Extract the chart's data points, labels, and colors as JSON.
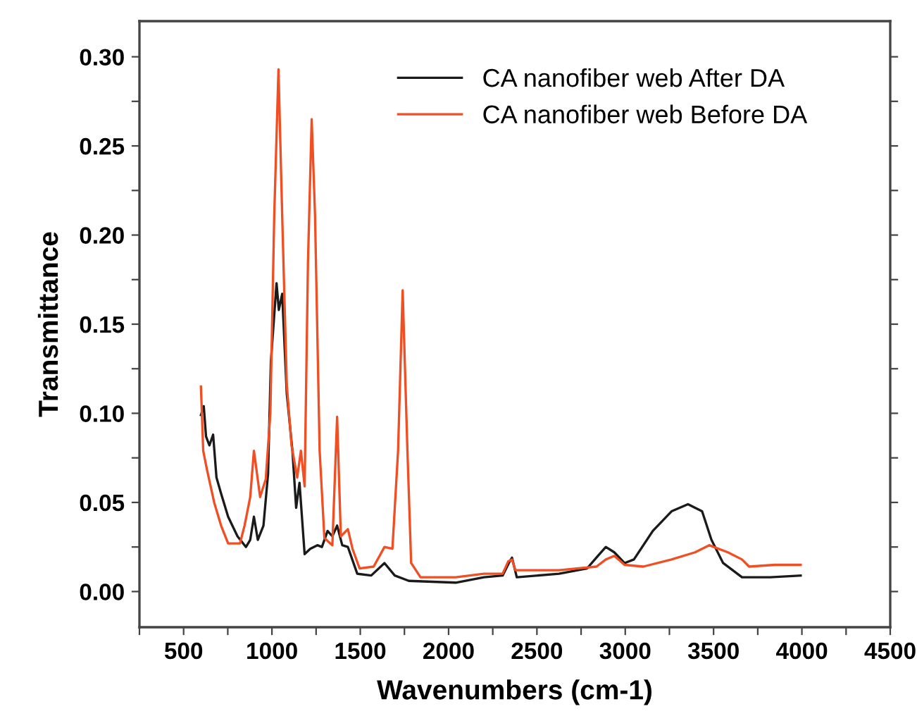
{
  "chart_data": {
    "type": "line",
    "xlabel": "Wavenumbers (cm-1)",
    "ylabel": "Transmittance",
    "xlim": [
      250,
      4500
    ],
    "ylim": [
      -0.02,
      0.32
    ],
    "xticks": [
      {
        "value": 250,
        "label": null
      },
      500,
      {
        "value": 750,
        "label": null
      },
      1000,
      {
        "value": 1250,
        "label": null
      },
      1500,
      {
        "value": 1750,
        "label": null
      },
      2000,
      {
        "value": 2250,
        "label": null
      },
      2500,
      {
        "value": 2750,
        "label": null
      },
      3000,
      {
        "value": 3250,
        "label": null
      },
      3500,
      {
        "value": 3750,
        "label": null
      },
      4000,
      {
        "value": 4250,
        "label": null
      },
      4500
    ],
    "yticks": [
      {
        "value": 0.0,
        "label": "0.00"
      },
      {
        "value": 0.025,
        "label": null
      },
      {
        "value": 0.05,
        "label": "0.05"
      },
      {
        "value": 0.075,
        "label": null
      },
      {
        "value": 0.1,
        "label": "0.10"
      },
      {
        "value": 0.125,
        "label": null
      },
      {
        "value": 0.15,
        "label": "0.15"
      },
      {
        "value": 0.175,
        "label": null
      },
      {
        "value": 0.2,
        "label": "0.20"
      },
      {
        "value": 0.225,
        "label": null
      },
      {
        "value": 0.25,
        "label": "0.25"
      },
      {
        "value": 0.275,
        "label": null
      },
      {
        "value": 0.3,
        "label": "0.30"
      }
    ],
    "grid": false,
    "legend": "top right",
    "marker": "none",
    "line_style": "solid",
    "series": [
      {
        "name": "CA nanofiber web After DA",
        "color": "#1a1a1a",
        "x": [
          598,
          614,
          627,
          646,
          667,
          686,
          712,
          752,
          805,
          853,
          877,
          898,
          920,
          952,
          978,
          994,
          1026,
          1039,
          1058,
          1084,
          1116,
          1137,
          1156,
          1185,
          1217,
          1257,
          1283,
          1315,
          1342,
          1369,
          1398,
          1430,
          1483,
          1562,
          1637,
          1695,
          1775,
          2040,
          2200,
          2306,
          2346,
          2359,
          2386,
          2625,
          2784,
          2845,
          2890,
          2938,
          2996,
          3049,
          3156,
          3262,
          3355,
          3435,
          3488,
          3554,
          3661,
          3820,
          3993
        ],
        "values": [
          0.099,
          0.104,
          0.087,
          0.082,
          0.088,
          0.064,
          0.055,
          0.042,
          0.031,
          0.025,
          0.029,
          0.042,
          0.029,
          0.037,
          0.066,
          0.129,
          0.173,
          0.158,
          0.167,
          0.111,
          0.079,
          0.047,
          0.061,
          0.021,
          0.024,
          0.026,
          0.025,
          0.034,
          0.031,
          0.037,
          0.026,
          0.025,
          0.01,
          0.009,
          0.016,
          0.009,
          0.006,
          0.005,
          0.008,
          0.009,
          0.017,
          0.019,
          0.008,
          0.01,
          0.013,
          0.02,
          0.025,
          0.022,
          0.016,
          0.018,
          0.034,
          0.045,
          0.049,
          0.045,
          0.029,
          0.016,
          0.008,
          0.008,
          0.009
        ]
      },
      {
        "name": "CA nanofiber web Before DA",
        "color": "#f04e23",
        "x": [
          598,
          611,
          633,
          673,
          712,
          752,
          819,
          845,
          877,
          898,
          933,
          965,
          991,
          1013,
          1037,
          1058,
          1084,
          1111,
          1143,
          1164,
          1185,
          1204,
          1225,
          1244,
          1270,
          1297,
          1342,
          1369,
          1390,
          1430,
          1456,
          1496,
          1576,
          1637,
          1682,
          1714,
          1740,
          1767,
          1788,
          1841,
          2040,
          2200,
          2306,
          2338,
          2359,
          2378,
          2572,
          2625,
          2837,
          2890,
          2938,
          2996,
          3102,
          3262,
          3395,
          3475,
          3581,
          3661,
          3701,
          3847,
          3993
        ],
        "values": [
          0.115,
          0.079,
          0.068,
          0.05,
          0.037,
          0.027,
          0.027,
          0.037,
          0.053,
          0.079,
          0.053,
          0.063,
          0.1,
          0.211,
          0.293,
          0.211,
          0.116,
          0.082,
          0.064,
          0.079,
          0.059,
          0.185,
          0.265,
          0.211,
          0.079,
          0.03,
          0.026,
          0.098,
          0.031,
          0.035,
          0.024,
          0.013,
          0.014,
          0.025,
          0.024,
          0.079,
          0.169,
          0.079,
          0.016,
          0.008,
          0.008,
          0.01,
          0.01,
          0.017,
          0.018,
          0.012,
          0.012,
          0.012,
          0.014,
          0.018,
          0.02,
          0.015,
          0.014,
          0.018,
          0.022,
          0.026,
          0.022,
          0.018,
          0.014,
          0.015,
          0.015
        ]
      }
    ]
  }
}
